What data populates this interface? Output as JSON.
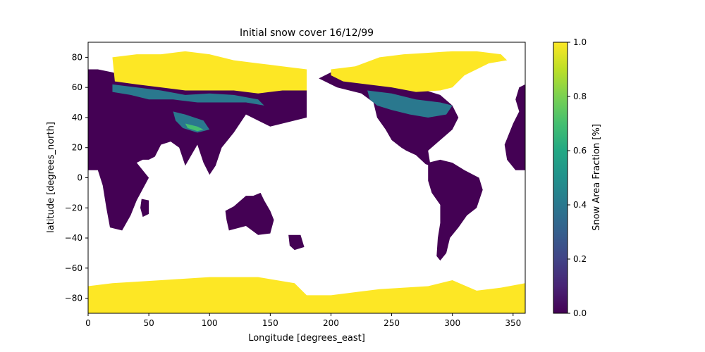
{
  "chart_data": {
    "type": "heatmap",
    "title": "Initial snow cover 16/12/99",
    "xlabel": "Longitude [degrees_east]",
    "ylabel": "latitude [degrees_north]",
    "xlim": [
      0,
      360
    ],
    "ylim": [
      -90,
      90
    ],
    "x_ticks": [
      0,
      50,
      100,
      150,
      200,
      250,
      300,
      350
    ],
    "y_ticks": [
      -80,
      -60,
      -40,
      -20,
      0,
      20,
      40,
      60,
      80
    ],
    "colorbar": {
      "label": "Snow Area Fraction [%]",
      "range": [
        0.0,
        1.0
      ],
      "ticks": [
        "0.0",
        "0.2",
        "0.4",
        "0.6",
        "0.8",
        "1.0"
      ],
      "colormap": "viridis"
    },
    "cells_note_unused": "",
    "regions": [
      {
        "name_unused": "",
        "value": 0.0,
        "poly": [
          [
            0,
            72
          ],
          [
            8,
            72
          ],
          [
            20,
            70
          ],
          [
            38,
            66
          ],
          [
            55,
            68
          ],
          [
            70,
            72
          ],
          [
            90,
            75
          ],
          [
            110,
            77
          ],
          [
            130,
            72
          ],
          [
            150,
            72
          ],
          [
            170,
            68
          ],
          [
            180,
            66
          ],
          [
            180,
            40
          ],
          [
            150,
            34
          ],
          [
            140,
            38
          ],
          [
            130,
            42
          ],
          [
            120,
            30
          ],
          [
            110,
            20
          ],
          [
            105,
            8
          ],
          [
            100,
            2
          ],
          [
            95,
            10
          ],
          [
            90,
            22
          ],
          [
            80,
            8
          ],
          [
            75,
            20
          ],
          [
            68,
            24
          ],
          [
            60,
            22
          ],
          [
            55,
            14
          ],
          [
            50,
            12
          ],
          [
            45,
            12
          ],
          [
            40,
            10
          ],
          [
            50,
            0
          ],
          [
            40,
            -15
          ],
          [
            35,
            -25
          ],
          [
            28,
            -35
          ],
          [
            18,
            -33
          ],
          [
            15,
            -20
          ],
          [
            12,
            -5
          ],
          [
            8,
            5
          ],
          [
            0,
            5
          ],
          [
            -5,
            10
          ],
          [
            0,
            15
          ],
          [
            0,
            35
          ]
        ]
      },
      {
        "value": 0.0,
        "poly": [
          [
            113,
            -22
          ],
          [
            120,
            -19
          ],
          [
            130,
            -12
          ],
          [
            136,
            -12
          ],
          [
            142,
            -10
          ],
          [
            145,
            -15
          ],
          [
            150,
            -22
          ],
          [
            153,
            -28
          ],
          [
            150,
            -37
          ],
          [
            140,
            -38
          ],
          [
            130,
            -32
          ],
          [
            116,
            -35
          ],
          [
            114,
            -28
          ]
        ]
      },
      {
        "value": 0.0,
        "poly": [
          [
            190,
            66
          ],
          [
            205,
            60
          ],
          [
            225,
            56
          ],
          [
            235,
            50
          ],
          [
            238,
            40
          ],
          [
            245,
            32
          ],
          [
            250,
            25
          ],
          [
            258,
            20
          ],
          [
            262,
            18
          ],
          [
            270,
            15
          ],
          [
            278,
            9
          ],
          [
            282,
            8
          ],
          [
            280,
            18
          ],
          [
            290,
            25
          ],
          [
            300,
            32
          ],
          [
            305,
            40
          ],
          [
            300,
            48
          ],
          [
            290,
            55
          ],
          [
            270,
            60
          ],
          [
            250,
            68
          ],
          [
            220,
            70
          ],
          [
            200,
            70
          ]
        ]
      },
      {
        "value": 0.0,
        "poly": [
          [
            280,
            10
          ],
          [
            290,
            12
          ],
          [
            300,
            10
          ],
          [
            310,
            5
          ],
          [
            322,
            0
          ],
          [
            325,
            -8
          ],
          [
            320,
            -20
          ],
          [
            312,
            -25
          ],
          [
            305,
            -33
          ],
          [
            298,
            -40
          ],
          [
            295,
            -50
          ],
          [
            290,
            -55
          ],
          [
            287,
            -52
          ],
          [
            288,
            -40
          ],
          [
            290,
            -30
          ],
          [
            290,
            -18
          ],
          [
            283,
            -10
          ],
          [
            280,
            -2
          ]
        ]
      },
      {
        "value": 0.0,
        "poly": [
          [
            355,
            60
          ],
          [
            360,
            62
          ],
          [
            360,
            5
          ],
          [
            352,
            5
          ],
          [
            345,
            12
          ],
          [
            343,
            22
          ],
          [
            350,
            36
          ],
          [
            355,
            44
          ],
          [
            352,
            52
          ]
        ]
      },
      {
        "value": 0.0,
        "poly": [
          [
            165,
            -38
          ],
          [
            175,
            -38
          ],
          [
            178,
            -46
          ],
          [
            170,
            -48
          ],
          [
            166,
            -45
          ]
        ]
      },
      {
        "value": 0.0,
        "poly": [
          [
            44,
            -14
          ],
          [
            50,
            -15
          ],
          [
            50,
            -24
          ],
          [
            45,
            -26
          ],
          [
            43,
            -20
          ]
        ]
      },
      {
        "value": 0.4,
        "poly": [
          [
            20,
            62
          ],
          [
            40,
            60
          ],
          [
            60,
            58
          ],
          [
            80,
            55
          ],
          [
            100,
            56
          ],
          [
            120,
            55
          ],
          [
            140,
            52
          ],
          [
            145,
            48
          ],
          [
            130,
            50
          ],
          [
            110,
            50
          ],
          [
            90,
            50
          ],
          [
            70,
            52
          ],
          [
            50,
            52
          ],
          [
            35,
            55
          ],
          [
            20,
            57
          ]
        ]
      },
      {
        "value": 0.4,
        "poly": [
          [
            70,
            44
          ],
          [
            80,
            42
          ],
          [
            95,
            38
          ],
          [
            100,
            32
          ],
          [
            90,
            30
          ],
          [
            78,
            33
          ],
          [
            72,
            38
          ]
        ]
      },
      {
        "value": 0.4,
        "poly": [
          [
            230,
            58
          ],
          [
            250,
            56
          ],
          [
            270,
            52
          ],
          [
            290,
            50
          ],
          [
            300,
            48
          ],
          [
            295,
            42
          ],
          [
            280,
            40
          ],
          [
            265,
            42
          ],
          [
            250,
            45
          ],
          [
            238,
            48
          ],
          [
            232,
            52
          ]
        ]
      },
      {
        "value": 0.7,
        "poly": [
          [
            80,
            36
          ],
          [
            90,
            34
          ],
          [
            95,
            32
          ],
          [
            90,
            31
          ],
          [
            82,
            33
          ]
        ]
      },
      {
        "value": 1.0,
        "poly": [
          [
            20,
            80
          ],
          [
            40,
            82
          ],
          [
            60,
            82
          ],
          [
            80,
            84
          ],
          [
            100,
            82
          ],
          [
            120,
            78
          ],
          [
            140,
            76
          ],
          [
            160,
            74
          ],
          [
            180,
            72
          ],
          [
            180,
            58
          ],
          [
            160,
            58
          ],
          [
            140,
            56
          ],
          [
            120,
            58
          ],
          [
            100,
            58
          ],
          [
            80,
            58
          ],
          [
            60,
            60
          ],
          [
            40,
            62
          ],
          [
            22,
            64
          ]
        ]
      },
      {
        "value": 1.0,
        "poly": [
          [
            200,
            72
          ],
          [
            220,
            74
          ],
          [
            240,
            80
          ],
          [
            260,
            82
          ],
          [
            280,
            83
          ],
          [
            300,
            84
          ],
          [
            320,
            84
          ],
          [
            340,
            82
          ],
          [
            345,
            78
          ],
          [
            330,
            76
          ],
          [
            310,
            68
          ],
          [
            300,
            60
          ],
          [
            290,
            58
          ],
          [
            270,
            57
          ],
          [
            250,
            60
          ],
          [
            230,
            62
          ],
          [
            210,
            64
          ],
          [
            200,
            68
          ]
        ]
      },
      {
        "value": 1.0,
        "poly": [
          [
            0,
            -72
          ],
          [
            20,
            -70
          ],
          [
            60,
            -68
          ],
          [
            100,
            -66
          ],
          [
            140,
            -66
          ],
          [
            170,
            -70
          ],
          [
            180,
            -78
          ],
          [
            200,
            -78
          ],
          [
            240,
            -74
          ],
          [
            280,
            -72
          ],
          [
            300,
            -68
          ],
          [
            320,
            -75
          ],
          [
            340,
            -73
          ],
          [
            360,
            -70
          ],
          [
            360,
            -90
          ],
          [
            0,
            -90
          ]
        ]
      }
    ]
  }
}
